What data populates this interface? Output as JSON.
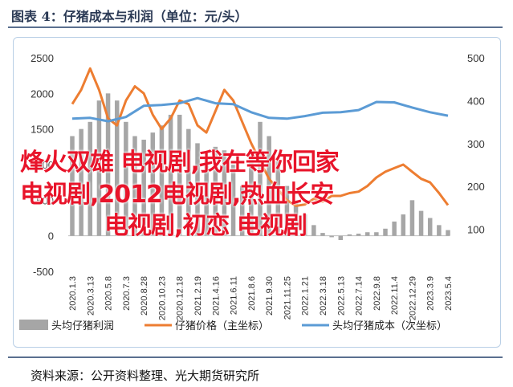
{
  "header": {
    "title": "图表 4：仔猪成本与利润（单位：元/头）"
  },
  "footer": {
    "source": "资料来源：公开资料整理、光大期货研究所"
  },
  "overlay": {
    "line1": "烽火双雄 电视剧,我在等你回家",
    "line2": "电视剧,2012电视剧,热血长安",
    "line3": "电视剧,初恋 电视剧"
  },
  "colors": {
    "bar": "#a6a6a6",
    "price": "#ed7d31",
    "cost": "#5b9bd5",
    "overlay": "#e8142a"
  },
  "chart_data": {
    "type": "bar+line",
    "xlabels": [
      "2020.1.3",
      "2020.3.13",
      "2020.5.8",
      "2020.7.3",
      "2020.8.28",
      "2020.10.23",
      "2020.12.18",
      "2021.2.19",
      "2021.4.16",
      "2021.6.11",
      "2021.8.6",
      "2021.9.30",
      "2021.11.25",
      "2022.1.21",
      "2022.3.18",
      "2022.5.13",
      "2022.7.14",
      "2022.9.8",
      "2022.11.4",
      "2022.12.29",
      "2023.3.9",
      "2023.5.4"
    ],
    "left_axis": {
      "ticks": [
        "2500",
        "2000",
        "1500",
        "1000",
        "500",
        "0",
        "-500"
      ],
      "range": [
        -500,
        2500
      ]
    },
    "right_axis": {
      "ticks": [
        "500",
        "400",
        "300",
        "200",
        "100"
      ],
      "range": [
        0,
        500
      ]
    },
    "legend": [
      "头均仔猪利润",
      "仔猪价格（主坐标）",
      "头均仔猪成本（次坐标）"
    ],
    "series": [
      {
        "name": "头均仔猪利润",
        "kind": "bar",
        "axis": "left",
        "x": [
          0,
          0.5,
          1,
          1.5,
          2,
          2.5,
          3,
          3.5,
          4,
          4.5,
          5,
          5.5,
          6,
          6.5,
          7,
          7.5,
          8,
          8.5,
          9,
          9.5,
          10,
          10.5,
          11,
          11.5,
          12,
          12.5,
          13,
          13.5,
          14,
          14.5,
          15,
          15.5,
          16,
          16.5,
          17,
          17.5,
          18,
          18.5,
          19,
          19.5,
          20,
          20.5,
          21
        ],
        "values": [
          1400,
          1500,
          1600,
          1900,
          2000,
          1900,
          1600,
          1400,
          1350,
          1450,
          1550,
          1700,
          1700,
          1500,
          1300,
          1100,
          1250,
          1200,
          1000,
          700,
          1150,
          1600,
          1400,
          1050,
          700,
          500,
          300,
          150,
          40,
          -20,
          -60,
          20,
          30,
          50,
          50,
          100,
          200,
          300,
          500,
          350,
          250,
          150,
          80
        ]
      },
      {
        "name": "仔猪价格（主坐标）",
        "kind": "line",
        "axis": "left",
        "x": [
          0,
          0.5,
          1,
          1.5,
          2,
          2.5,
          3,
          3.5,
          4,
          4.5,
          5,
          5.5,
          6,
          6.5,
          7,
          7.5,
          8,
          8.5,
          9,
          9.5,
          10,
          10.5,
          11,
          11.5,
          12,
          12.5,
          13,
          13.5,
          14,
          14.5,
          15,
          15.5,
          16,
          16.5,
          17,
          17.5,
          18,
          18.5,
          19,
          19.5,
          20,
          20.5,
          21
        ],
        "values": [
          1850,
          2050,
          2350,
          2050,
          1650,
          1550,
          1900,
          2100,
          2000,
          1700,
          1500,
          1650,
          1900,
          1850,
          1550,
          1450,
          1750,
          2050,
          1900,
          1600,
          1300,
          1050,
          800,
          650,
          500,
          420,
          440,
          520,
          480,
          560,
          560,
          600,
          620,
          700,
          820,
          900,
          950,
          1000,
          900,
          800,
          750,
          600,
          430
        ]
      },
      {
        "name": "头均仔猪成本（次坐标）",
        "kind": "line",
        "axis": "right",
        "x": [
          0,
          1,
          2,
          3,
          4,
          5,
          6,
          7,
          8,
          9,
          10,
          11,
          12,
          13,
          14,
          15,
          16,
          17,
          18,
          19,
          20,
          21
        ],
        "values": [
          358,
          360,
          352,
          362,
          388,
          390,
          394,
          406,
          394,
          392,
          373,
          360,
          358,
          364,
          372,
          373,
          378,
          397,
          396,
          384,
          373,
          365
        ]
      }
    ]
  }
}
